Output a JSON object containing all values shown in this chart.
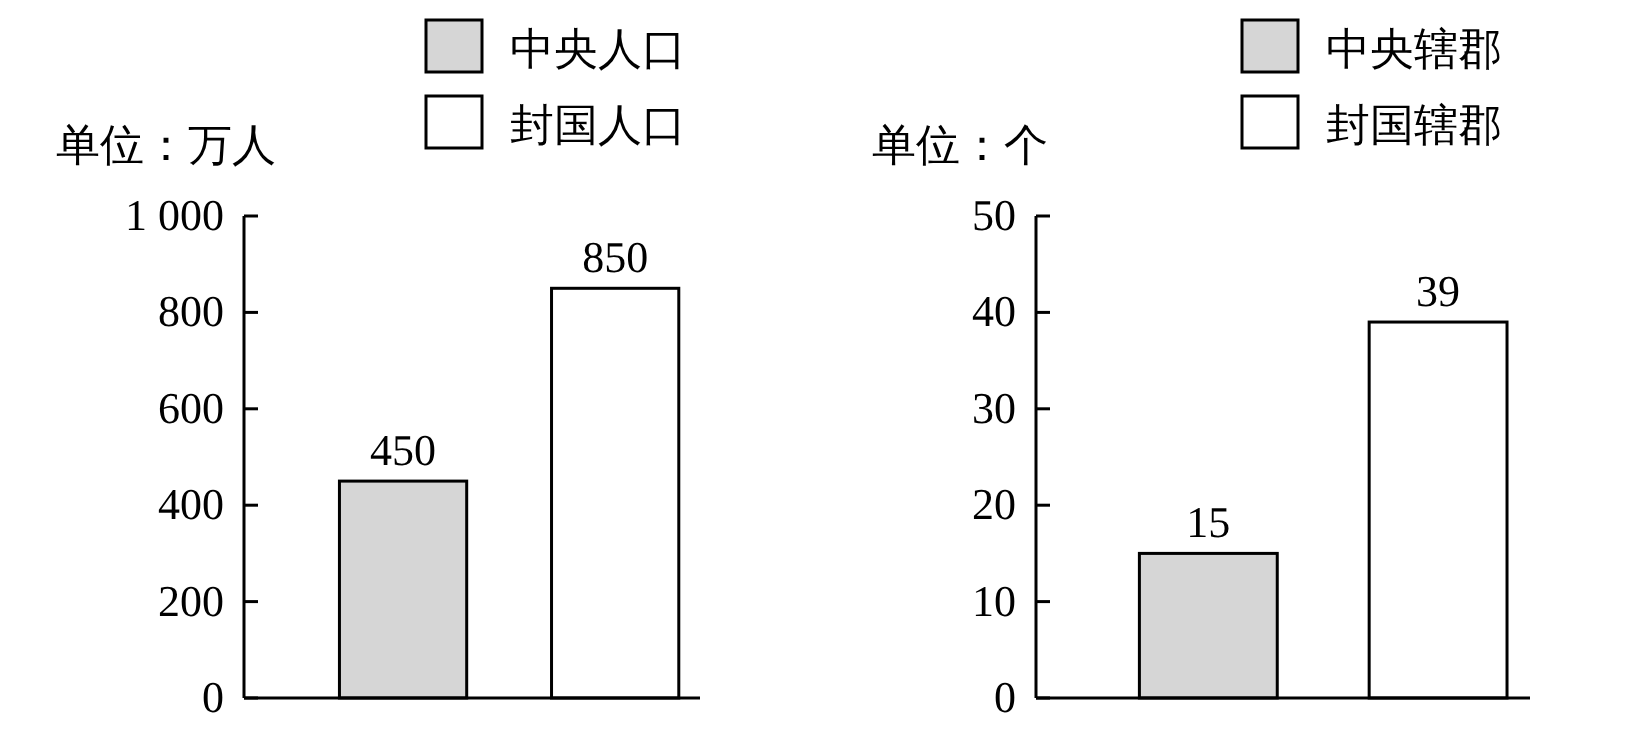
{
  "chart_data": [
    {
      "type": "bar",
      "ylabel": "单位：万人",
      "categories": [
        null,
        null
      ],
      "series": [
        {
          "name": "中央人口",
          "color": "#d6d6d6",
          "values": [
            450,
            null
          ]
        },
        {
          "name": "封国人口",
          "color": "#ffffff",
          "values": [
            null,
            850
          ]
        }
      ],
      "ylim": [
        0,
        1000
      ],
      "yticks": [
        0,
        200,
        400,
        600,
        800,
        {
          "value": 1000,
          "label": "1 000"
        }
      ],
      "data_labels": true,
      "legend": "top",
      "grid": false
    },
    {
      "type": "bar",
      "ylabel": "单位：个",
      "categories": [
        null,
        null
      ],
      "series": [
        {
          "name": "中央辖郡",
          "color": "#d6d6d6",
          "values": [
            15,
            null
          ]
        },
        {
          "name": "封国辖郡",
          "color": "#ffffff",
          "values": [
            null,
            39
          ]
        }
      ],
      "ylim": [
        0,
        50
      ],
      "yticks": [
        0,
        10,
        20,
        30,
        40,
        50
      ],
      "data_labels": true,
      "legend": "top",
      "grid": false
    }
  ]
}
